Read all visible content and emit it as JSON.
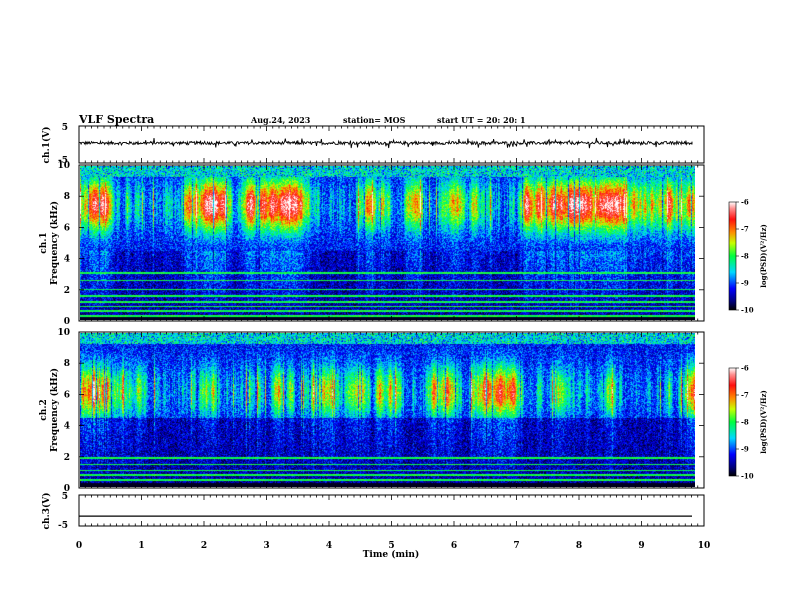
{
  "header": {
    "title": "VLF Spectra",
    "date": "Aug.24, 2023",
    "station": "station= MOS",
    "start": "start  UT  =   20: 20: 1"
  },
  "chart_data": [
    {
      "type": "line",
      "ylabel": "ch.1(V)",
      "ylim": [
        -5,
        5
      ],
      "yticks": [
        "5",
        "-5"
      ],
      "xlim": [
        0,
        10
      ],
      "series": [
        {
          "level": 0.4,
          "noise": 0.8
        }
      ]
    },
    {
      "type": "heatmap",
      "ylabel": "ch.1\nFrequency (kHz)",
      "ylim": [
        0,
        10
      ],
      "yticks": [
        "0",
        "2",
        "4",
        "6",
        "8",
        "10"
      ],
      "xlim": [
        0,
        10
      ],
      "colorbar": {
        "label": "log(PSD)(V²/Hz)",
        "range": [
          -10,
          -6
        ],
        "ticks": [
          "-6",
          "-7",
          "-8",
          "-9",
          "-10"
        ]
      }
    },
    {
      "type": "heatmap",
      "ylabel": "ch.2\nFrequency (kHz)",
      "ylim": [
        0,
        10
      ],
      "yticks": [
        "0",
        "2",
        "4",
        "6",
        "8",
        "10"
      ],
      "xlim": [
        0,
        10
      ],
      "colorbar": {
        "label": "log(PSD)(V²/Hz)",
        "range": [
          -10,
          -6
        ],
        "ticks": [
          "-6",
          "-7",
          "-8",
          "-9",
          "-10"
        ]
      }
    },
    {
      "type": "line",
      "ylabel": "ch.3(V)",
      "ylim": [
        -5,
        5
      ],
      "yticks": [
        "5",
        "-5"
      ],
      "xlim": [
        0,
        10
      ],
      "series": [
        {
          "level": -1.8,
          "noise": 0
        }
      ]
    }
  ],
  "xaxis": {
    "label": "Time  (min)",
    "ticks": [
      "0",
      "1",
      "2",
      "3",
      "4",
      "5",
      "6",
      "7",
      "8",
      "9",
      "10"
    ]
  }
}
